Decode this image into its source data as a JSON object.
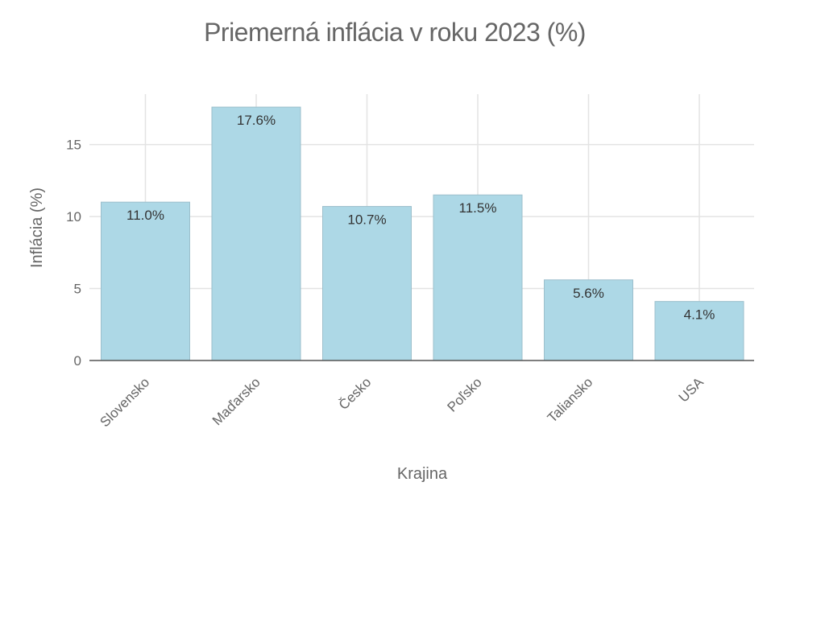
{
  "chart_data": {
    "type": "bar",
    "title": "Priemerná inflácia v roku 2023 (%)",
    "xlabel": "Krajina",
    "ylabel": "Inflácia (%)",
    "categories": [
      "Slovensko",
      "Maďarsko",
      "Česko",
      "Poľsko",
      "Taliansko",
      "USA"
    ],
    "values": [
      11.0,
      17.6,
      10.7,
      11.5,
      5.6,
      4.1
    ],
    "value_labels": [
      "11.0%",
      "17.6%",
      "10.7%",
      "11.5%",
      "5.6%",
      "4.1%"
    ],
    "ylim": [
      0,
      18.5
    ],
    "yticks": [
      0,
      5,
      10,
      15
    ],
    "ytick_labels": [
      "0",
      "5",
      "10",
      "15"
    ],
    "grid": true,
    "colors": {
      "bar_fill": "#add8e6",
      "bar_stroke": "#9cbfcc",
      "grid": "#e3e3e3",
      "axis": "#555555",
      "text": "#666666",
      "bar_label": "#333333"
    }
  }
}
